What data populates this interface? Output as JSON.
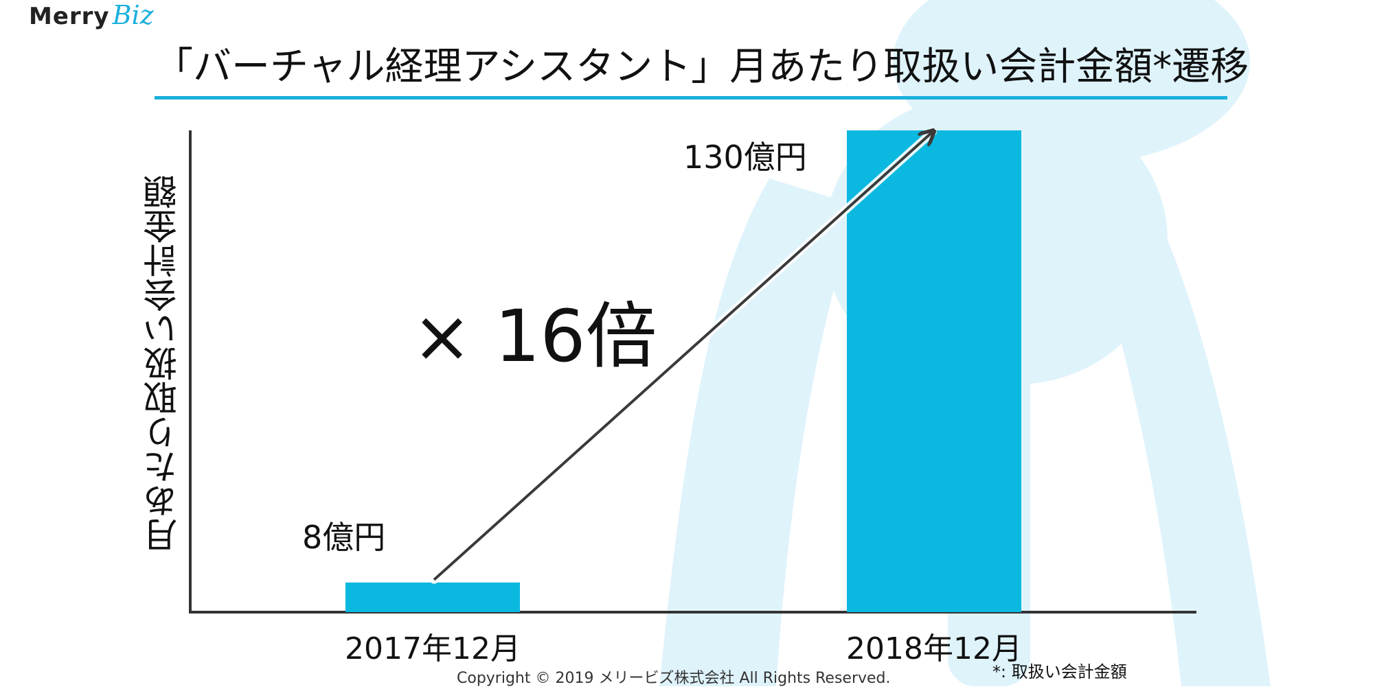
{
  "logo": {
    "name_part1": "Merry",
    "name_part2": "Biz"
  },
  "title": "「バーチャル経理アシスタント」月あたり取扱い会計金額*遷移",
  "annotation": "× 16倍",
  "footnote": "*: 取扱い会計金額",
  "copyright": "Copyright © 2019 メリービズ株式会社 All Rights Reserved.",
  "colors": {
    "accent": "#1ab0dc",
    "bar": "#0bb8e0",
    "watermark": "#dff3fb",
    "text": "#111111"
  },
  "chart_data": {
    "type": "bar",
    "title": "「バーチャル経理アシスタント」月あたり取扱い会計金額*遷移",
    "xlabel": "",
    "ylabel": "月あたり取扱い会計金額",
    "unit": "億円",
    "categories": [
      "2017年12月",
      "2018年12月"
    ],
    "values": [
      8,
      130
    ],
    "value_labels": [
      "8億円",
      "130億円"
    ],
    "ylim": [
      0,
      130
    ],
    "grid": false,
    "legend": "none"
  }
}
